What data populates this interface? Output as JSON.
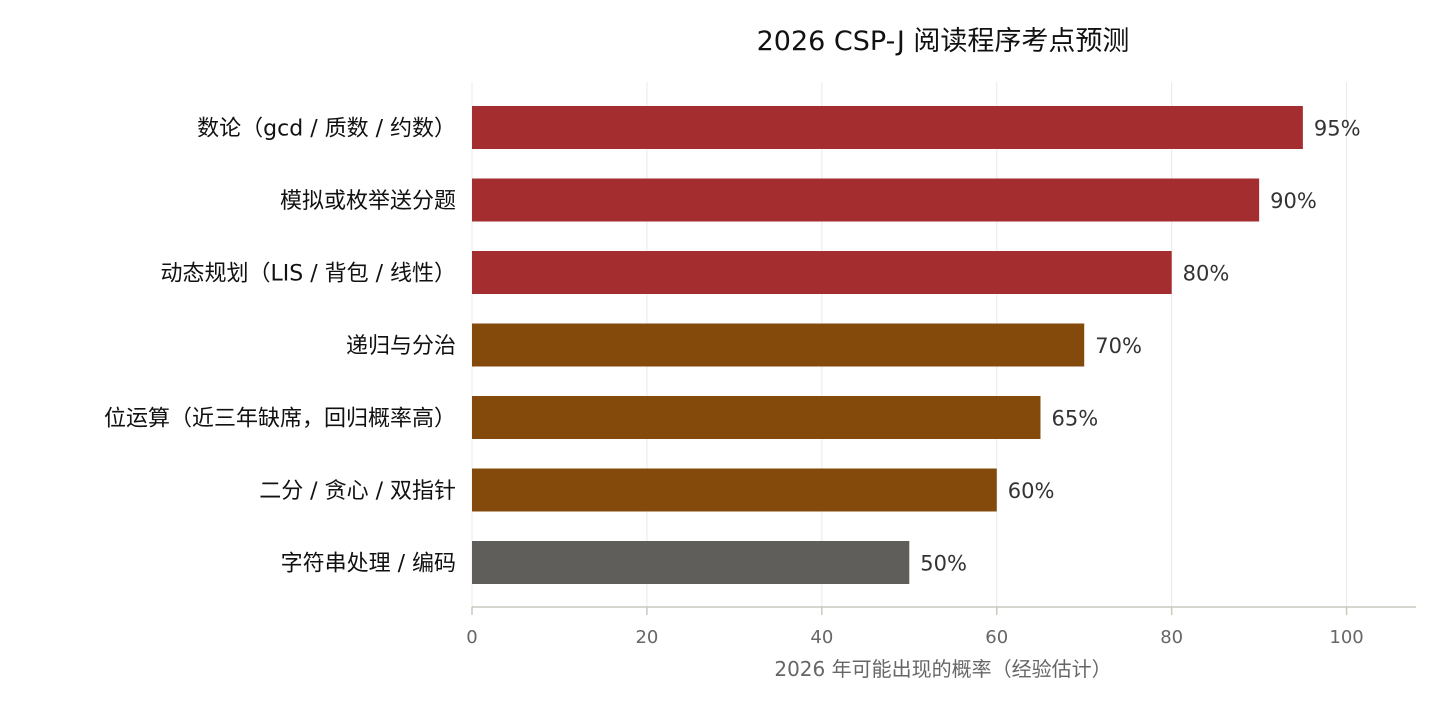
{
  "chart_data": {
    "type": "bar",
    "orientation": "horizontal",
    "title": "2026 CSP-J 阅读程序考点预测",
    "xlabel": "2026 年可能出现的概率（经验估计）",
    "ylabel": "",
    "xlim": [
      0,
      108
    ],
    "xticks": [
      0,
      20,
      40,
      60,
      80,
      100
    ],
    "grid": "vertical",
    "categories": [
      "数论（gcd / 质数 / 约数）",
      "模拟或枚举送分题",
      "动态规划（LIS / 背包 / 线性）",
      "递归与分治",
      "位运算（近三年缺席，回归概率高）",
      "二分 / 贪心 / 双指针",
      "字符串处理 / 编码"
    ],
    "values": [
      95,
      90,
      80,
      70,
      65,
      60,
      50
    ],
    "value_labels": [
      "95%",
      "90%",
      "80%",
      "70%",
      "65%",
      "60%",
      "50%"
    ],
    "colors": [
      "#a42d30",
      "#a42d30",
      "#a42d30",
      "#844a0c",
      "#844a0c",
      "#844a0c",
      "#5f5e5a"
    ]
  }
}
